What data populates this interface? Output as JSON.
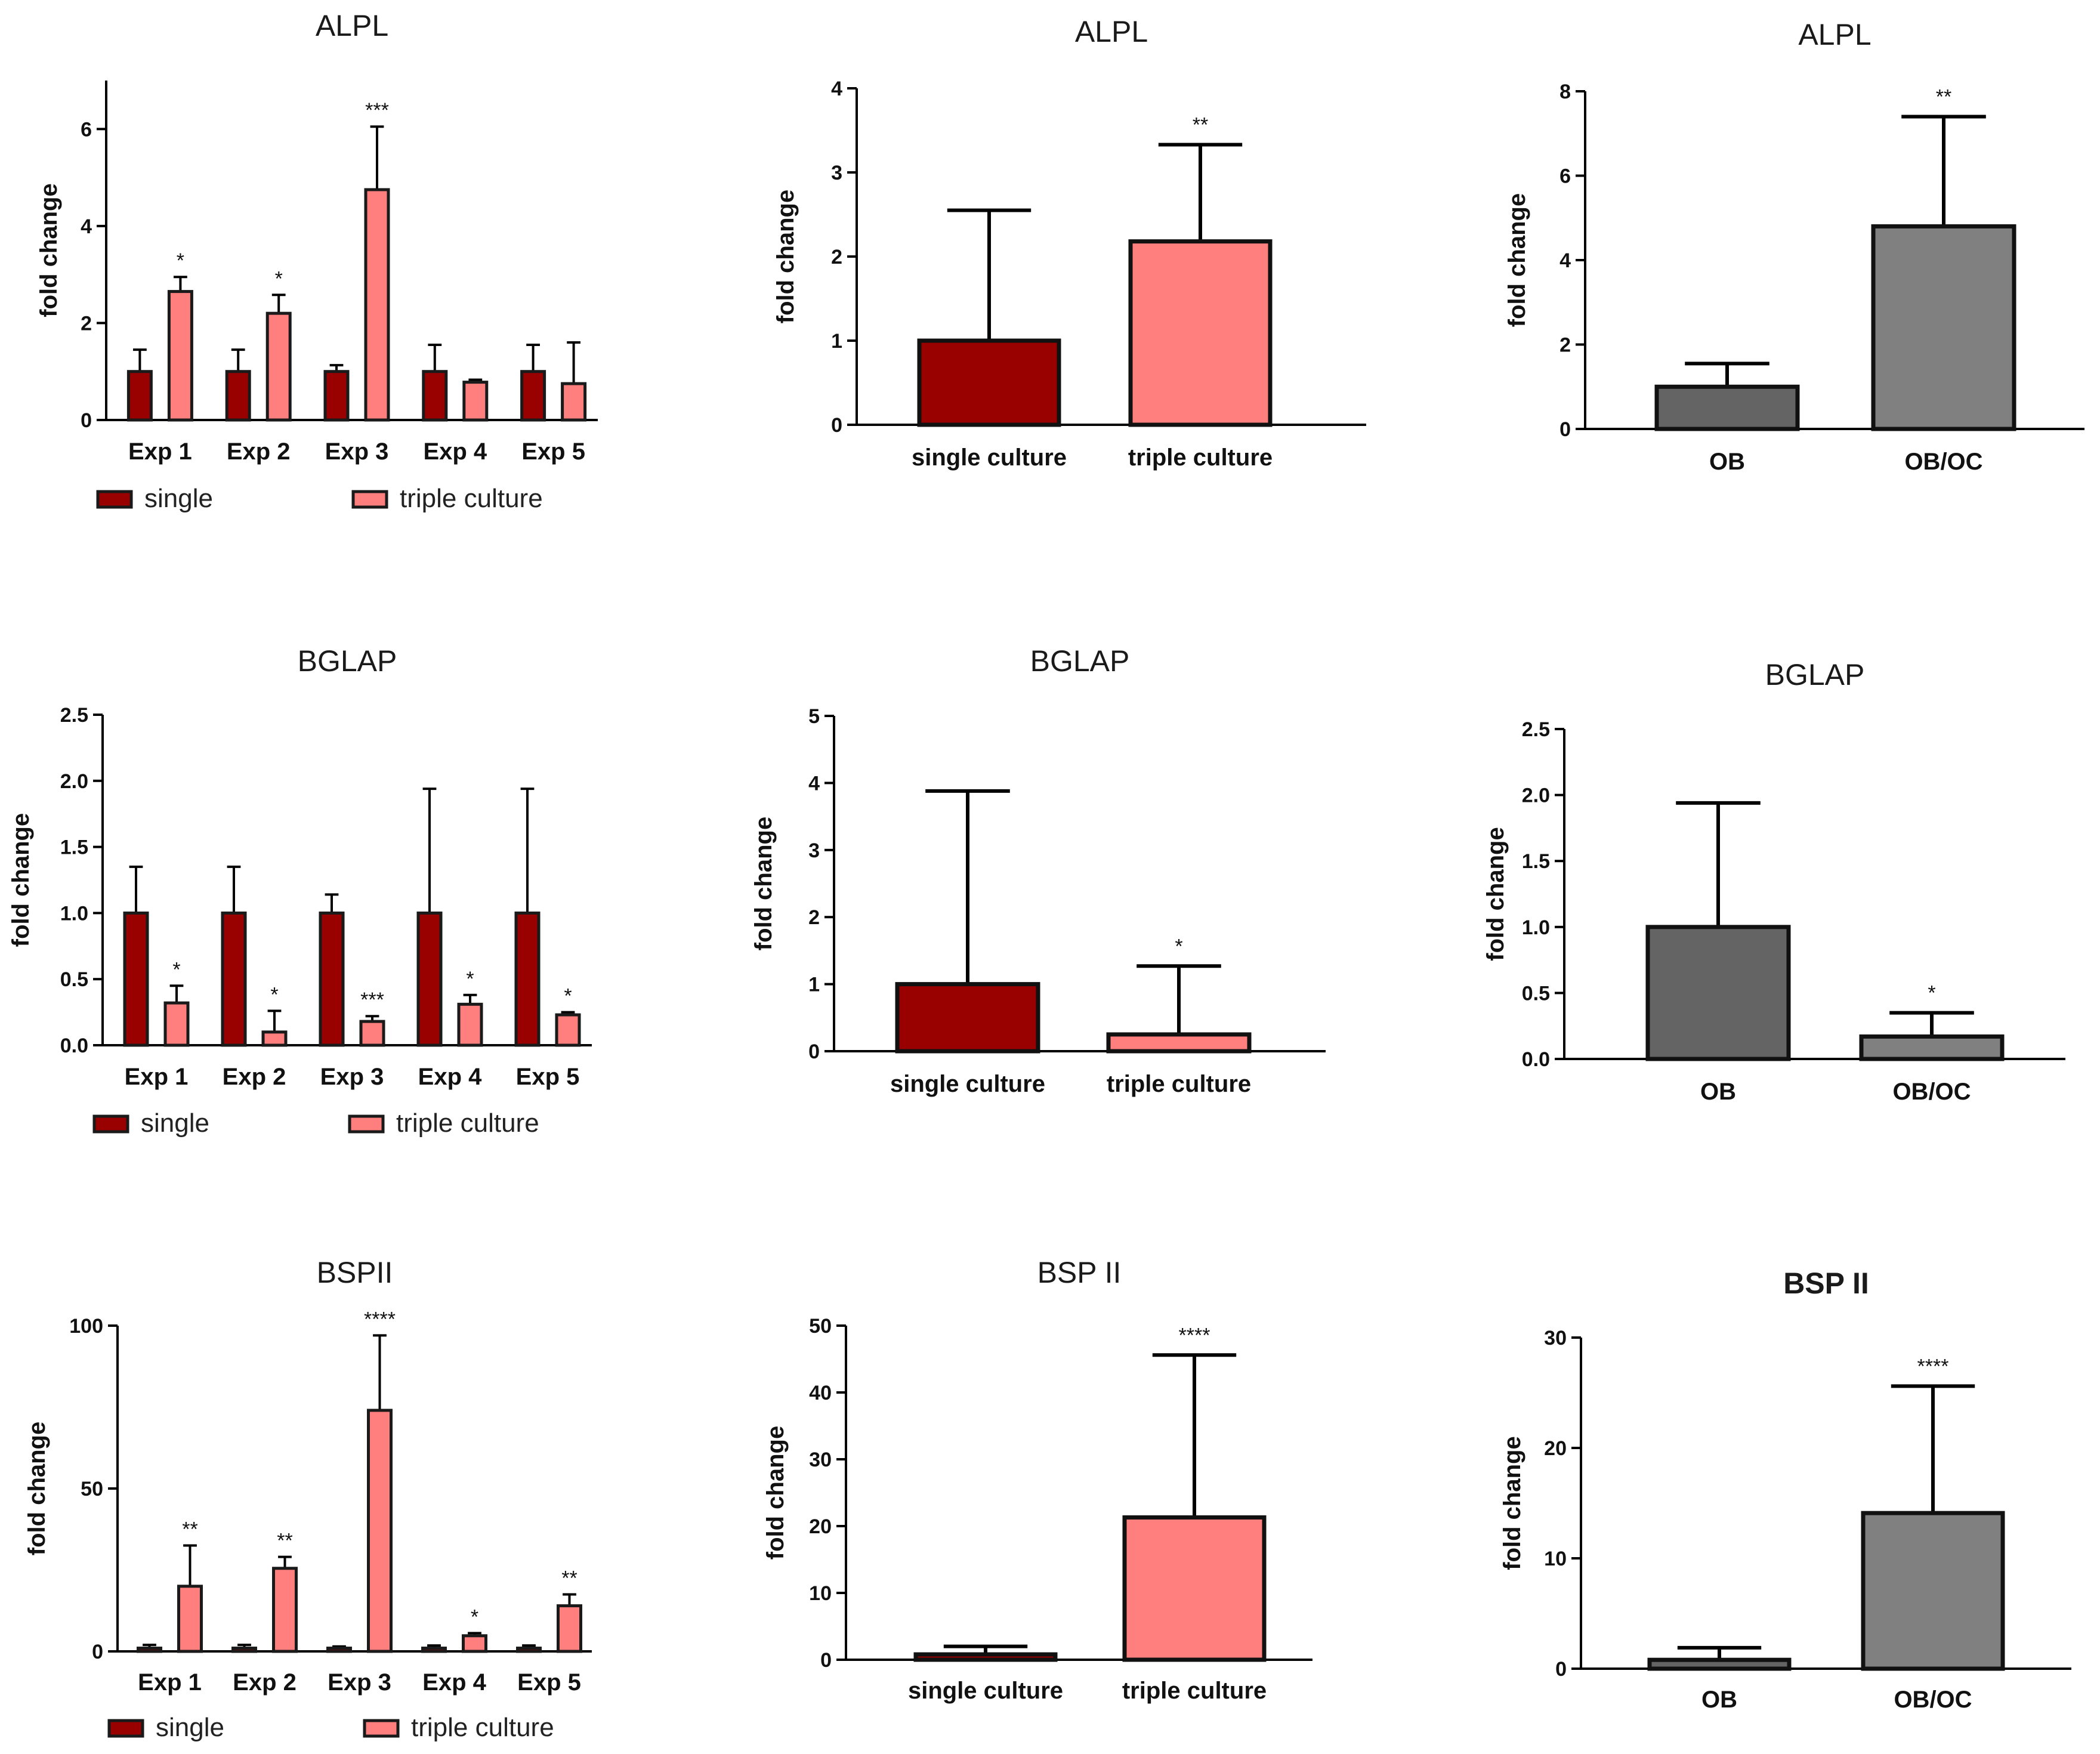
{
  "colors": {
    "single": "#990000",
    "triple": "#FF7F7F",
    "ob": "#646464",
    "obc": "#808080"
  },
  "chart_data": [
    {
      "id": "alpl-exp",
      "type": "bar",
      "title": "ALPL",
      "ylabel": "fold change",
      "ylim": [
        0,
        7
      ],
      "yticks": [
        "0",
        "2",
        "4",
        "6"
      ],
      "categories": [
        "Exp 1",
        "Exp 2",
        "Exp 3",
        "Exp 4",
        "Exp 5"
      ],
      "series": [
        {
          "name": "single",
          "values": [
            1,
            1,
            1,
            1,
            1
          ],
          "errors": [
            0.45,
            0.45,
            0.13,
            0.55,
            0.55
          ],
          "sig": [
            "",
            "",
            "",
            "",
            ""
          ]
        },
        {
          "name": "triple culture",
          "values": [
            2.65,
            2.2,
            4.75,
            0.78,
            0.75
          ],
          "errors": [
            0.3,
            0.38,
            1.3,
            0.05,
            0.85
          ],
          "sig": [
            "*",
            "*",
            "***",
            "",
            ""
          ]
        }
      ],
      "legend": "bottom"
    },
    {
      "id": "alpl-culture",
      "type": "bar",
      "title": "ALPL",
      "ylabel": "fold change",
      "ylim": [
        0,
        4
      ],
      "yticks": [
        "0",
        "1",
        "2",
        "3",
        "4"
      ],
      "categories": [
        "single culture",
        "triple culture"
      ],
      "values": [
        1,
        2.18
      ],
      "errors": [
        1.55,
        1.15
      ],
      "sig": [
        "",
        "**"
      ]
    },
    {
      "id": "alpl-ob",
      "type": "bar",
      "title": "ALPL",
      "ylabel": "fold change",
      "ylim": [
        0,
        8
      ],
      "yticks": [
        "0",
        "2",
        "4",
        "6",
        "8"
      ],
      "categories": [
        "OB",
        "OB/OC"
      ],
      "values": [
        1,
        4.8
      ],
      "errors": [
        0.55,
        2.6
      ],
      "sig": [
        "",
        "**"
      ]
    },
    {
      "id": "bglap-exp",
      "type": "bar",
      "title": "BGLAP",
      "ylabel": "fold change",
      "ylim": [
        0,
        2.5
      ],
      "yticks": [
        "0.0",
        "0.5",
        "1.0",
        "1.5",
        "2.0",
        "2.5"
      ],
      "categories": [
        "Exp 1",
        "Exp 2",
        "Exp 3",
        "Exp 4",
        "Exp 5"
      ],
      "series": [
        {
          "name": "single",
          "values": [
            1,
            1,
            1,
            1,
            1
          ],
          "errors": [
            0.35,
            0.35,
            0.14,
            0.94,
            0.94
          ],
          "sig": [
            "",
            "",
            "",
            "",
            ""
          ]
        },
        {
          "name": "triple culture",
          "values": [
            0.32,
            0.1,
            0.18,
            0.31,
            0.23
          ],
          "errors": [
            0.13,
            0.16,
            0.04,
            0.07,
            0.02
          ],
          "sig": [
            "*",
            "*",
            "***",
            "*",
            "*"
          ]
        }
      ],
      "legend": "bottom"
    },
    {
      "id": "bglap-culture",
      "type": "bar",
      "title": "BGLAP",
      "ylabel": "fold change",
      "ylim": [
        0,
        5
      ],
      "yticks": [
        "0",
        "1",
        "2",
        "3",
        "4",
        "5"
      ],
      "categories": [
        "single culture",
        "triple culture"
      ],
      "values": [
        1,
        0.25
      ],
      "errors": [
        2.88,
        1.02
      ],
      "sig": [
        "",
        "*"
      ]
    },
    {
      "id": "bglap-ob",
      "type": "bar",
      "title": "BGLAP",
      "ylabel": "fold change",
      "ylim": [
        0,
        2.5
      ],
      "yticks": [
        "0.0",
        "0.5",
        "1.0",
        "1.5",
        "2.0",
        "2.5"
      ],
      "categories": [
        "OB",
        "OB/OC"
      ],
      "values": [
        1,
        0.17
      ],
      "errors": [
        0.94,
        0.18
      ],
      "sig": [
        "",
        "*"
      ]
    },
    {
      "id": "bspii-exp",
      "type": "bar",
      "title": "BSPII",
      "ylabel": "fold change",
      "ylim": [
        0,
        100
      ],
      "yticks": [
        "0",
        "50",
        "100"
      ],
      "categories": [
        "Exp 1",
        "Exp 2",
        "Exp 3",
        "Exp 4",
        "Exp 5"
      ],
      "series": [
        {
          "name": "single",
          "values": [
            1,
            1,
            1,
            1,
            1
          ],
          "errors": [
            1,
            1,
            0.5,
            0.8,
            0.8
          ],
          "sig": [
            "",
            "",
            "",
            "",
            ""
          ]
        },
        {
          "name": "triple culture",
          "values": [
            20,
            25.5,
            74,
            4.8,
            14
          ],
          "errors": [
            12.5,
            3.5,
            23,
            0.8,
            3.5
          ],
          "sig": [
            "**",
            "**",
            "****",
            "*",
            "**"
          ]
        }
      ],
      "legend": "bottom"
    },
    {
      "id": "bspii-culture",
      "type": "bar",
      "title": "BSP II",
      "ylabel": "fold change",
      "ylim": [
        0,
        50
      ],
      "yticks": [
        "0",
        "10",
        "20",
        "30",
        "40",
        "50"
      ],
      "categories": [
        "single culture",
        "triple culture"
      ],
      "values": [
        0.8,
        21.3
      ],
      "errors": [
        1.2,
        24.3
      ],
      "sig": [
        "",
        "****"
      ]
    },
    {
      "id": "bspii-ob",
      "type": "bar",
      "title": "BSP II",
      "ylabel": "fold change",
      "ylim": [
        0,
        30
      ],
      "yticks": [
        "0",
        "10",
        "20",
        "30"
      ],
      "categories": [
        "OB",
        "OB/OC"
      ],
      "values": [
        0.8,
        14.1
      ],
      "errors": [
        1.1,
        11.5
      ],
      "sig": [
        "",
        "****"
      ]
    }
  ]
}
